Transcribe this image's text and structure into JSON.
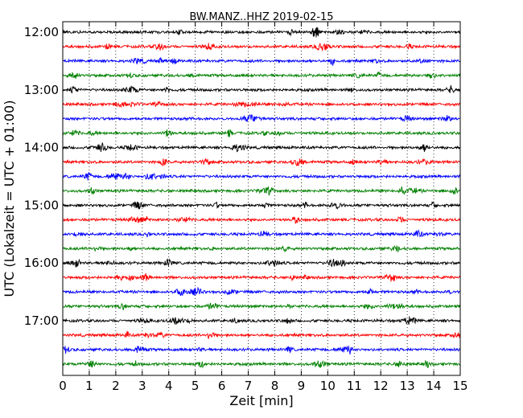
{
  "chart_data": {
    "type": "line",
    "title": "BW.MANZ..HHZ 2019-02-15",
    "xlabel": "Zeit  [min]",
    "ylabel": "UTC (Lokalzeit = UTC + 01:00)",
    "xlim": [
      0,
      15
    ],
    "x_ticks": [
      0,
      1,
      2,
      3,
      4,
      5,
      6,
      7,
      8,
      9,
      10,
      11,
      12,
      13,
      14,
      15
    ],
    "x_tick_labels": [
      "0",
      "1",
      "2",
      "3",
      "4",
      "5",
      "6",
      "7",
      "8",
      "9",
      "10",
      "11",
      "12",
      "13",
      "14",
      "15"
    ],
    "y_tick_labels": [
      "12:00",
      "13:00",
      "14:00",
      "15:00",
      "16:00",
      "17:00"
    ],
    "y_ticks_trace_index": [
      0,
      4,
      8,
      12,
      16,
      20
    ],
    "trace_count": 24,
    "trace_interval_min": 15,
    "first_trace_time": "12:00",
    "grid": {
      "x": true,
      "y": false,
      "style": "dotted"
    },
    "series_colors": [
      "#000000",
      "#ff0000",
      "#0000ff",
      "#008000"
    ]
  }
}
